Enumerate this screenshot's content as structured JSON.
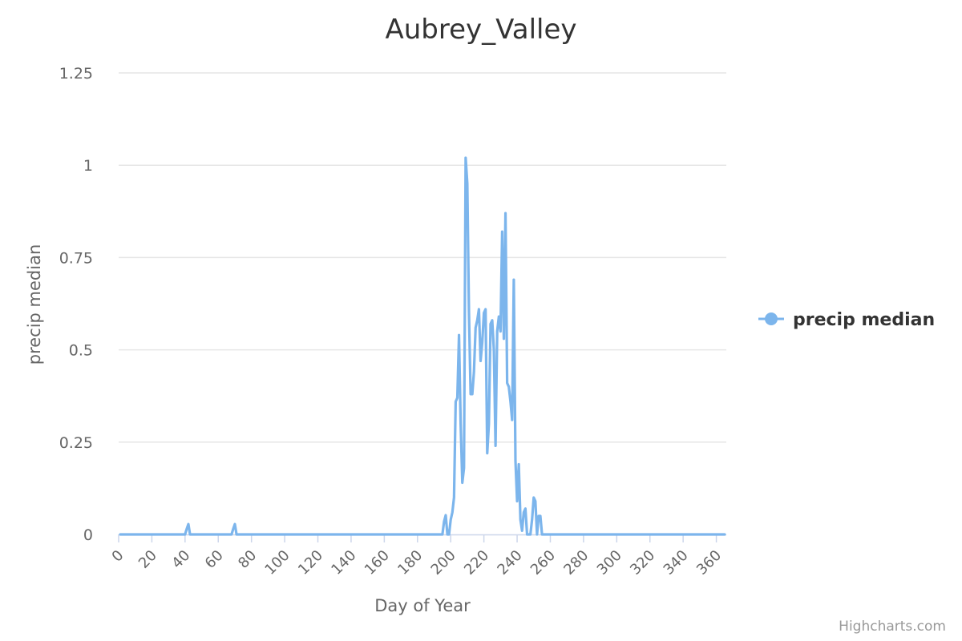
{
  "chart_data": {
    "type": "line",
    "title": "Aubrey_Valley",
    "xlabel": "Day of Year",
    "ylabel": "precip median",
    "xlim": [
      0,
      366
    ],
    "ylim": [
      0,
      1.25
    ],
    "xticks": [
      0,
      20,
      40,
      60,
      80,
      100,
      120,
      140,
      160,
      180,
      200,
      220,
      240,
      260,
      280,
      300,
      320,
      340,
      360
    ],
    "yticks": [
      {
        "value": 0,
        "label": "0"
      },
      {
        "value": 0.25,
        "label": "0.25"
      },
      {
        "value": 0.5,
        "label": "0.5"
      },
      {
        "value": 0.75,
        "label": "0.75"
      },
      {
        "value": 1,
        "label": "1"
      },
      {
        "value": 1.25,
        "label": "1.25"
      }
    ],
    "grid": true,
    "legend_position": "right",
    "series": [
      {
        "name": "precip median",
        "color": "#7cb5ec",
        "points": [
          [
            1,
            0
          ],
          [
            40,
            0
          ],
          [
            41,
            0.015
          ],
          [
            42,
            0.028
          ],
          [
            43,
            0
          ],
          [
            68,
            0
          ],
          [
            69,
            0.015
          ],
          [
            70,
            0.028
          ],
          [
            71,
            0
          ],
          [
            195,
            0
          ],
          [
            196,
            0.035
          ],
          [
            197,
            0.052
          ],
          [
            198,
            0
          ],
          [
            199,
            0
          ],
          [
            200,
            0.04
          ],
          [
            201,
            0.06
          ],
          [
            202,
            0.1
          ],
          [
            203,
            0.36
          ],
          [
            204,
            0.37
          ],
          [
            205,
            0.54
          ],
          [
            206,
            0.3
          ],
          [
            207,
            0.14
          ],
          [
            208,
            0.18
          ],
          [
            209,
            1.02
          ],
          [
            210,
            0.95
          ],
          [
            211,
            0.6
          ],
          [
            212,
            0.38
          ],
          [
            213,
            0.38
          ],
          [
            214,
            0.44
          ],
          [
            215,
            0.56
          ],
          [
            216,
            0.58
          ],
          [
            217,
            0.61
          ],
          [
            218,
            0.47
          ],
          [
            219,
            0.52
          ],
          [
            220,
            0.6
          ],
          [
            221,
            0.61
          ],
          [
            222,
            0.22
          ],
          [
            223,
            0.3
          ],
          [
            224,
            0.57
          ],
          [
            225,
            0.58
          ],
          [
            226,
            0.5
          ],
          [
            227,
            0.24
          ],
          [
            228,
            0.55
          ],
          [
            229,
            0.59
          ],
          [
            230,
            0.55
          ],
          [
            231,
            0.82
          ],
          [
            232,
            0.53
          ],
          [
            233,
            0.87
          ],
          [
            234,
            0.41
          ],
          [
            235,
            0.4
          ],
          [
            236,
            0.36
          ],
          [
            237,
            0.31
          ],
          [
            238,
            0.69
          ],
          [
            239,
            0.2
          ],
          [
            240,
            0.09
          ],
          [
            241,
            0.19
          ],
          [
            242,
            0.04
          ],
          [
            243,
            0.01
          ],
          [
            244,
            0.06
          ],
          [
            245,
            0.07
          ],
          [
            246,
            0
          ],
          [
            247,
            0
          ],
          [
            248,
            0
          ],
          [
            249,
            0.04
          ],
          [
            250,
            0.1
          ],
          [
            251,
            0.09
          ],
          [
            252,
            0
          ],
          [
            253,
            0.05
          ],
          [
            254,
            0.05
          ],
          [
            255,
            0
          ],
          [
            365,
            0
          ]
        ]
      }
    ]
  },
  "credits": "Highcharts.com"
}
